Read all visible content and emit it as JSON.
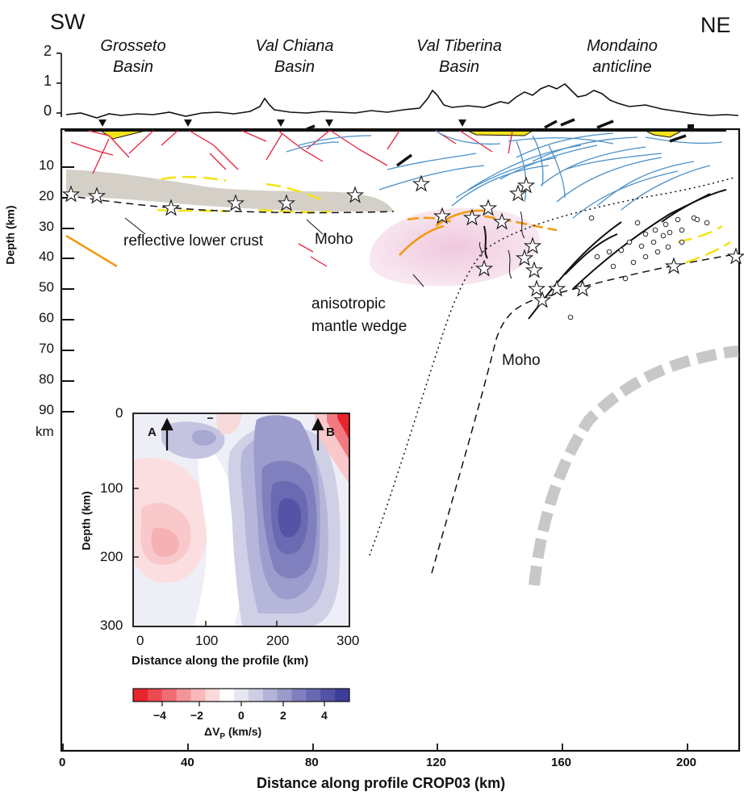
{
  "figure": {
    "direction_left": "SW",
    "direction_right": "NE",
    "basins": [
      {
        "line1": "Grosseto",
        "line2": "Basin"
      },
      {
        "line1": "Val Chiana",
        "line2": "Basin"
      },
      {
        "line1": "Val Tiberina",
        "line2": "Basin"
      },
      {
        "line1": "Mondaino",
        "line2": "anticline"
      }
    ],
    "topo_ticks": [
      "2",
      "1",
      "0"
    ],
    "depth_axis_label": "Depth (km)",
    "depth_ticks": [
      "10",
      "20",
      "30",
      "40",
      "50",
      "60",
      "70",
      "80",
      "90"
    ],
    "depth_unit": "km",
    "annotations": {
      "reflective_lower_crust": "reflective lower crust",
      "moho_upper": "Moho",
      "mantle_line1": "anisotropic",
      "mantle_line2": "mantle wedge",
      "moho_lower": "Moho"
    },
    "x_axis_label": "Distance along profile CROP03 (km)",
    "x_ticks": [
      "0",
      "40",
      "80",
      "120",
      "160",
      "200"
    ],
    "colors": {
      "faults_red": "#e8203c",
      "faults_blue": "#4a90c8",
      "moho_orange": "#f39a12",
      "yellow_fill": "#f4e31a",
      "lower_crust_gray": "#d4d0c8",
      "mantle_pink": "#f4dcea",
      "slab_gray": "#c8c8c8"
    }
  },
  "inset": {
    "label_A": "A",
    "label_B": "B",
    "y_axis_label": "Depth (km)",
    "y_ticks": [
      "0",
      "100",
      "200",
      "300"
    ],
    "x_axis_label": "Distance along the profile (km)",
    "x_ticks": [
      "0",
      "100",
      "200",
      "300"
    ],
    "colorbar_label": "ΔV",
    "colorbar_subscript": "P",
    "colorbar_unit": " (km/s)",
    "colorbar_ticks": [
      "−4",
      "−2",
      "0",
      "2",
      "4"
    ],
    "colorbar_colors": [
      "#e8242c",
      "#ec4a52",
      "#f06d74",
      "#f49498",
      "#f8b8bb",
      "#fbd8da",
      "#ffffff",
      "#e6e6f1",
      "#cdcde4",
      "#b3b3d8",
      "#9a9acb",
      "#8080be",
      "#6868b2",
      "#5252a6",
      "#3d3d9a"
    ]
  }
}
